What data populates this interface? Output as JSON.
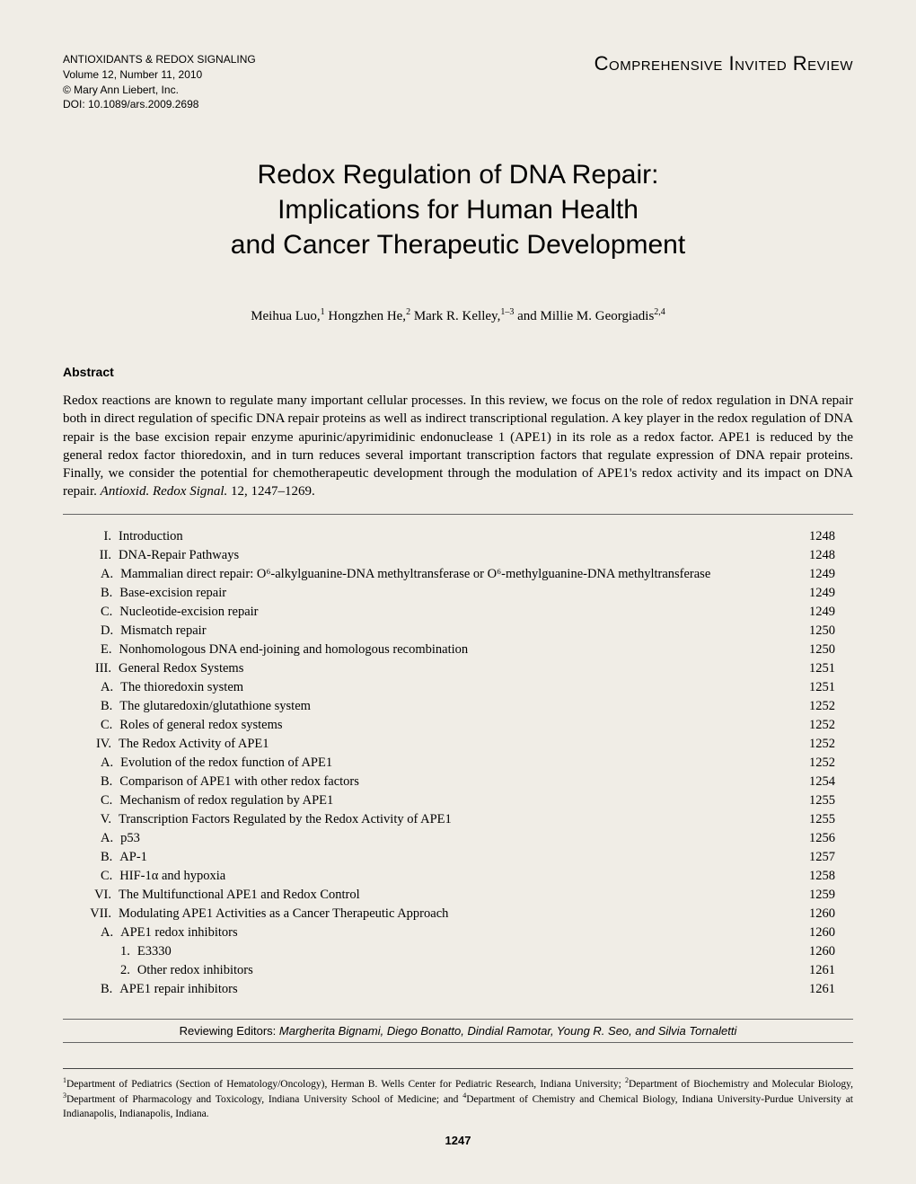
{
  "header": {
    "journal": "ANTIOXIDANTS & REDOX SIGNALING",
    "volume": "Volume 12, Number 11, 2010",
    "copyright": "© Mary Ann Liebert, Inc.",
    "doi": "DOI: 10.1089/ars.2009.2698",
    "review_type": "Comprehensive Invited Review"
  },
  "title": {
    "line1": "Redox Regulation of DNA Repair:",
    "line2": "Implications for Human Health",
    "line3": "and Cancer Therapeutic Development"
  },
  "authors_html": "Meihua Luo,<sup>1</sup> Hongzhen He,<sup>2</sup> Mark R. Kelley,<sup>1–3</sup> and Millie M. Georgiadis<sup>2,4</sup>",
  "abstract": {
    "heading": "Abstract",
    "body": "Redox reactions are known to regulate many important cellular processes. In this review, we focus on the role of redox regulation in DNA repair both in direct regulation of specific DNA repair proteins as well as indirect transcriptional regulation. A key player in the redox regulation of DNA repair is the base excision repair enzyme apurinic/apyrimidinic endonuclease 1 (APE1) in its role as a redox factor. APE1 is reduced by the general redox factor thioredoxin, and in turn reduces several important transcription factors that regulate expression of DNA repair proteins. Finally, we consider the potential for chemotherapeutic development through the modulation of APE1's redox activity and its impact on DNA repair. ",
    "citation": "Antioxid. Redox Signal.",
    "pages": " 12, 1247–1269."
  },
  "toc": [
    {
      "num": "I.",
      "label": "Introduction",
      "page": "1248",
      "indent": 0
    },
    {
      "num": "II.",
      "label": "DNA-Repair Pathways",
      "page": "1248",
      "indent": 0
    },
    {
      "num": "A.",
      "label": "Mammalian direct repair: O⁶-alkylguanine-DNA methyltransferase or O⁶-methylguanine-DNA methyltransferase",
      "page": "1249",
      "indent": 1,
      "wrap": true
    },
    {
      "num": "B.",
      "label": "Base-excision repair",
      "page": "1249",
      "indent": 1
    },
    {
      "num": "C.",
      "label": "Nucleotide-excision repair",
      "page": "1249",
      "indent": 1
    },
    {
      "num": "D.",
      "label": "Mismatch repair",
      "page": "1250",
      "indent": 1
    },
    {
      "num": "E.",
      "label": "Nonhomologous DNA end-joining and homologous recombination",
      "page": "1250",
      "indent": 1
    },
    {
      "num": "III.",
      "label": "General Redox Systems",
      "page": "1251",
      "indent": 0
    },
    {
      "num": "A.",
      "label": "The thioredoxin system",
      "page": "1251",
      "indent": 1
    },
    {
      "num": "B.",
      "label": "The glutaredoxin/glutathione system",
      "page": "1252",
      "indent": 1
    },
    {
      "num": "C.",
      "label": "Roles of general redox systems",
      "page": "1252",
      "indent": 1
    },
    {
      "num": "IV.",
      "label": "The Redox Activity of APE1",
      "page": "1252",
      "indent": 0
    },
    {
      "num": "A.",
      "label": "Evolution of the redox function of APE1",
      "page": "1252",
      "indent": 1
    },
    {
      "num": "B.",
      "label": "Comparison of APE1 with other redox factors",
      "page": "1254",
      "indent": 1
    },
    {
      "num": "C.",
      "label": "Mechanism of redox regulation by APE1",
      "page": "1255",
      "indent": 1
    },
    {
      "num": "V.",
      "label": "Transcription Factors Regulated by the Redox Activity of APE1",
      "page": "1255",
      "indent": 0
    },
    {
      "num": "A.",
      "label": "p53",
      "page": "1256",
      "indent": 1
    },
    {
      "num": "B.",
      "label": "AP-1",
      "page": "1257",
      "indent": 1
    },
    {
      "num": "C.",
      "label": "HIF-1α and hypoxia",
      "page": "1258",
      "indent": 1
    },
    {
      "num": "VI.",
      "label": "The Multifunctional APE1 and Redox Control",
      "page": "1259",
      "indent": 0
    },
    {
      "num": "VII.",
      "label": "Modulating APE1 Activities as a Cancer Therapeutic Approach",
      "page": "1260",
      "indent": 0
    },
    {
      "num": "A.",
      "label": "APE1 redox inhibitors",
      "page": "1260",
      "indent": 1
    },
    {
      "num": "1.",
      "label": "E3330",
      "page": "1260",
      "indent": 2
    },
    {
      "num": "2.",
      "label": "Other redox inhibitors",
      "page": "1261",
      "indent": 2
    },
    {
      "num": "B.",
      "label": "APE1 repair inhibitors",
      "page": "1261",
      "indent": 1
    }
  ],
  "editors": {
    "prefix": "Reviewing Editors: ",
    "names": "Margherita Bignami, Diego Bonatto, Dindial Ramotar, Young R. Seo, and Silvia Tornaletti"
  },
  "affiliations_html": "<sup>1</sup>Department of Pediatrics (Section of Hematology/Oncology), Herman B. Wells Center for Pediatric Research, Indiana University; <sup>2</sup>Department of Biochemistry and Molecular Biology, <sup>3</sup>Department of Pharmacology and Toxicology, Indiana University School of Medicine; and <sup>4</sup>Department of Chemistry and Chemical Biology, Indiana University-Purdue University at Indianapolis, Indianapolis, Indiana.",
  "page_number": "1247"
}
